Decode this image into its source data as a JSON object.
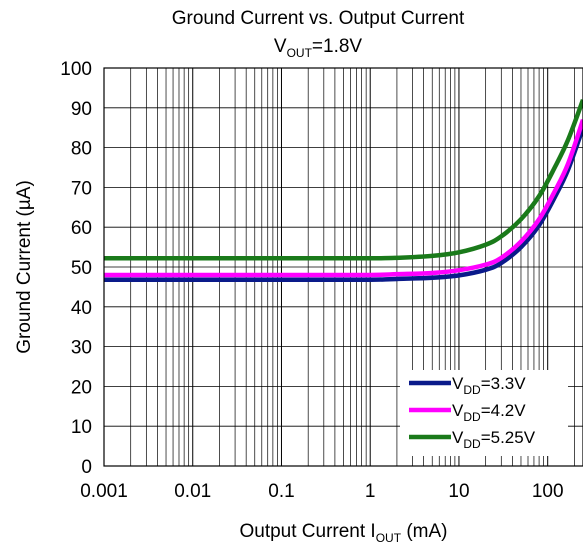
{
  "chart_data": {
    "type": "line",
    "title": "Ground Current vs. Output Current",
    "subtitle": {
      "main": "V",
      "sub": "OUT",
      "rest": "=1.8V"
    },
    "xlabel": {
      "main": "Output Current I",
      "sub": "OUT",
      "rest": " (mA)"
    },
    "ylabel": "Ground Current (µA)",
    "x_scale": "log",
    "xlim": [
      0.001,
      250
    ],
    "ylim": [
      0,
      100
    ],
    "x_ticks": [
      0.001,
      0.01,
      0.1,
      1,
      10,
      100
    ],
    "x_tick_labels": [
      "0.001",
      "0.01",
      "0.1",
      "1",
      "10",
      "100"
    ],
    "y_ticks": [
      0,
      10,
      20,
      30,
      40,
      50,
      60,
      70,
      80,
      90,
      100
    ],
    "y_tick_labels": [
      "0",
      "10",
      "20",
      "30",
      "40",
      "50",
      "60",
      "70",
      "80",
      "90",
      "100"
    ],
    "grid": true,
    "legend_position": "bottom-right",
    "x": [
      0.001,
      0.01,
      0.1,
      1,
      2,
      5,
      10,
      20,
      30,
      50,
      80,
      120,
      170,
      250
    ],
    "series": [
      {
        "name": {
          "main": "V",
          "sub": "DD",
          "rest": "=3.3V"
        },
        "color": "#0a1a8a",
        "values": [
          46.8,
          46.8,
          46.8,
          46.8,
          47.0,
          47.3,
          47.9,
          49.3,
          51.0,
          55.0,
          60.5,
          67.5,
          74.5,
          85.0
        ]
      },
      {
        "name": {
          "main": "V",
          "sub": "DD",
          "rest": "=4.2V"
        },
        "color": "#ff00ff",
        "values": [
          48.0,
          48.0,
          48.0,
          48.0,
          48.2,
          48.5,
          49.2,
          50.6,
          52.3,
          56.4,
          62.0,
          69.0,
          76.0,
          87.0
        ]
      },
      {
        "name": {
          "main": "V",
          "sub": "DD",
          "rest": "=5.25V"
        },
        "color": "#1a7a1a",
        "values": [
          52.2,
          52.2,
          52.2,
          52.2,
          52.3,
          52.8,
          53.7,
          55.6,
          57.7,
          62.0,
          67.8,
          75.0,
          82.0,
          92.0
        ]
      }
    ]
  }
}
